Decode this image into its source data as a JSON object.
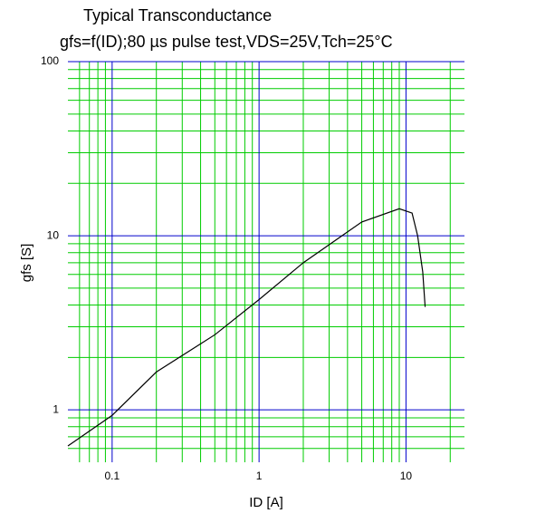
{
  "chart_data": {
    "type": "line",
    "title": "Typical Transconductance",
    "subtitle": "gfs=f(ID);80 µs pulse test,VDS=25V,Tch=25°C",
    "x_label": "ID [A]",
    "y_label": "gfs [S]",
    "x": [
      0.05,
      0.1,
      0.2,
      0.5,
      1,
      2,
      5,
      9,
      11,
      12,
      13,
      13.5
    ],
    "series": [
      {
        "color": "#000000",
        "values": [
          0.62,
          0.93,
          1.65,
          2.7,
          4.3,
          7,
          12,
          14.3,
          13.5,
          10,
          6.2,
          3.9
        ]
      }
    ],
    "xlim": [
      0.05,
      25
    ],
    "ylim": [
      0.5,
      100
    ],
    "xticks": [
      0.1,
      1,
      10
    ],
    "yticks": [
      1,
      10,
      100
    ],
    "log_x": true,
    "log_y": true,
    "grid": true,
    "minor_grid": true,
    "major_grid_color": "#0000cc",
    "minor_grid_color": "#00cc00"
  }
}
